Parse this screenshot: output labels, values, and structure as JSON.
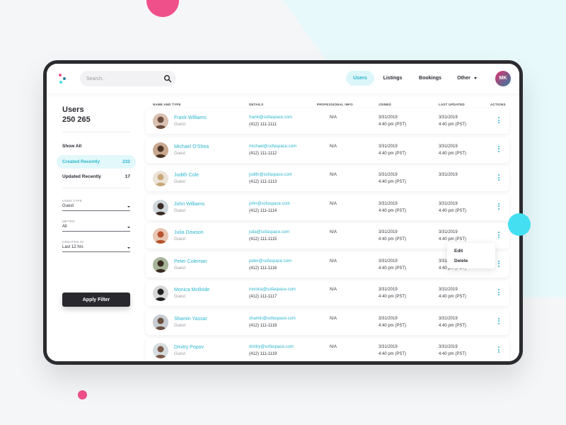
{
  "colors": {
    "accent": "#2ab6cd",
    "accent_bg": "#e2f8fb",
    "brand_pink": "#f0508a",
    "dark": "#28282e"
  },
  "search": {
    "placeholder": "Search..",
    "icon": "search-icon"
  },
  "nav": {
    "users": "Users",
    "listings": "Listings",
    "bookings": "Bookings",
    "other": "Other"
  },
  "profile": {
    "initials": "MK"
  },
  "sidebar": {
    "title": "Users",
    "count": "250 265",
    "filters": [
      {
        "label": "Show All",
        "count": ""
      },
      {
        "label": "Created Recently",
        "count": "232"
      },
      {
        "label": "Updated Recently",
        "count": "17"
      }
    ],
    "fields": [
      {
        "label": "USER TYPE",
        "value": "Guest"
      },
      {
        "label": "METRO",
        "value": "All"
      },
      {
        "label": "CREATED IN",
        "value": "Last 12 hrs"
      }
    ],
    "apply_label": "Apply Filter"
  },
  "table": {
    "headers": {
      "name": "NAME AND TYPE",
      "details": "DETAILS",
      "professional": "PROFESSIONAL INFO",
      "joined": "JOINED",
      "updated": "LAST UPDATED",
      "actions": "ACTIONS"
    },
    "rows": [
      {
        "name": "Frank Williams",
        "type": "Guest",
        "email": "frankl@sofaspace.com",
        "phone": "(412) 111-1111",
        "professional": "N/A",
        "joined_date": "3/31/2019",
        "joined_time": "4:40 pm (PST)",
        "updated_date": "3/31/2019",
        "updated_time": "4:40 pm (PST)"
      },
      {
        "name": "Michael O'Shea",
        "type": "Guest",
        "email": "michael@sofaspace.com",
        "phone": "(412) 111-1112",
        "professional": "N/A",
        "joined_date": "3/31/2019",
        "joined_time": "4:40 pm (PST)",
        "updated_date": "3/31/2019",
        "updated_time": "4:40 pm (PST)"
      },
      {
        "name": "Judith Cole",
        "type": "Guest",
        "email": "judith@sofaspace.com",
        "phone": "(412) 111-1113",
        "professional": "N/A",
        "joined_date": "3/31/2019",
        "joined_time": "4:40 pm (PST)",
        "updated_date": "3/31/2019",
        "updated_time": ""
      },
      {
        "name": "John Williams",
        "type": "Guest",
        "email": "john@sofaspace.com",
        "phone": "(412) 111-1114",
        "professional": "N/A",
        "joined_date": "3/31/2019",
        "joined_time": "4:40 pm (PST)",
        "updated_date": "3/31/2019",
        "updated_time": "4:40 pm (PST)"
      },
      {
        "name": "Julia Dowson",
        "type": "Guest",
        "email": "julia@sofaspace.com",
        "phone": "(412) 111-1115",
        "professional": "N/A",
        "joined_date": "3/31/2019",
        "joined_time": "4:40 pm (PST)",
        "updated_date": "3/31/2019",
        "updated_time": "4:40 pm (PST)"
      },
      {
        "name": "Peter Coleman",
        "type": "Guest",
        "email": "peter@sofaspace.com",
        "phone": "(412) 111-1116",
        "professional": "N/A",
        "joined_date": "3/31/2019",
        "joined_time": "4:40 pm (PST)",
        "updated_date": "3/31/2019",
        "updated_time": "4:40 pm (PST)"
      },
      {
        "name": "Monica McBride",
        "type": "Guest",
        "email": "monica@sofaspace.com",
        "phone": "(412) 111-1117",
        "professional": "N/A",
        "joined_date": "3/31/2019",
        "joined_time": "4:40 pm (PST)",
        "updated_date": "3/31/2019",
        "updated_time": "4:40 pm (PST)"
      },
      {
        "name": "Shamin Yassar",
        "type": "Guest",
        "email": "shamin@sofaspace.com",
        "phone": "(412) 111-1118",
        "professional": "N/A",
        "joined_date": "3/31/2019",
        "joined_time": "4:40 pm (PST)",
        "updated_date": "3/31/2019",
        "updated_time": "4:40 pm (PST)"
      },
      {
        "name": "Dmitry Popov",
        "type": "Guest",
        "email": "dmitry@sofaspace.com",
        "phone": "(412) 111-1119",
        "professional": "N/A",
        "joined_date": "3/31/2019",
        "joined_time": "4:40 pm (PST)",
        "updated_date": "3/31/2019",
        "updated_time": "4:40 pm (PST)"
      }
    ]
  },
  "context_menu": {
    "edit": "Edit",
    "delete": "Delete"
  }
}
